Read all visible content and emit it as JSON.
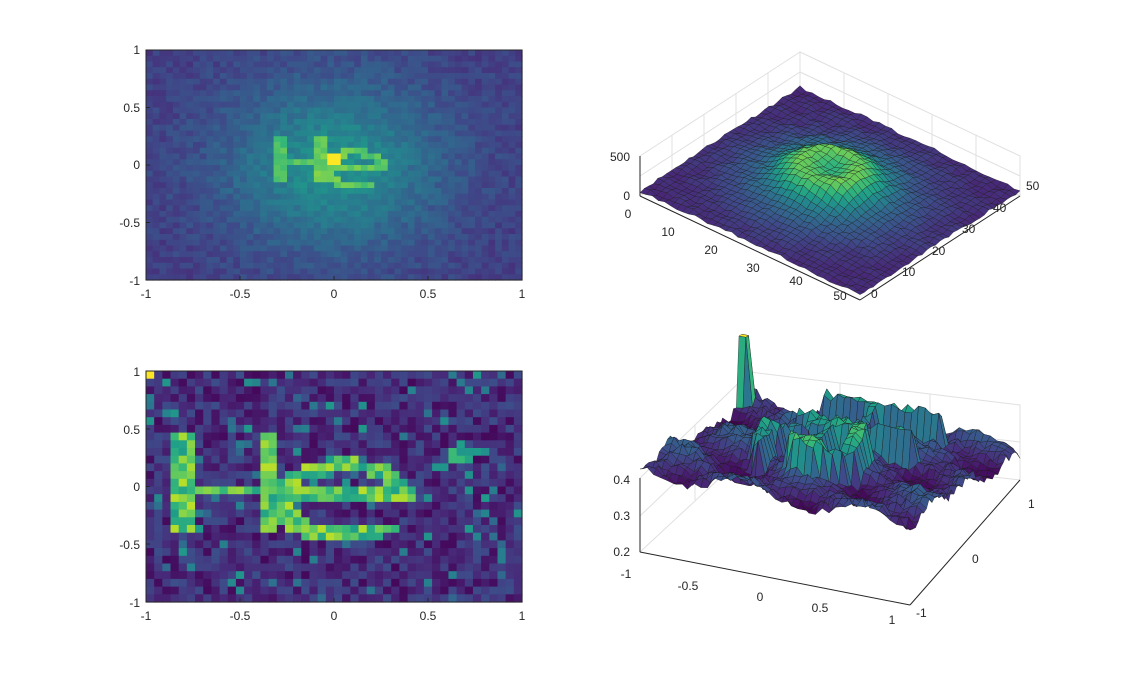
{
  "chart_data": [
    {
      "type": "heatmap",
      "position": "top-left",
      "title": "",
      "xlabel": "",
      "ylabel": "",
      "xlim": [
        -1,
        1
      ],
      "ylim": [
        -1,
        1
      ],
      "xticks": [
        "-1",
        "-0.5",
        "0",
        "0.5",
        "1"
      ],
      "yticks": [
        "-1",
        "-0.5",
        "0",
        "0.5",
        "1"
      ],
      "grid": false,
      "colormap": "viridis",
      "description_of_values": "2D histogram, ~50x50 bins; broad elliptical blob with faint 'He' letters brighter near center"
    },
    {
      "type": "surface",
      "position": "top-right",
      "title": "",
      "xlim": [
        0,
        50
      ],
      "ylim": [
        0,
        50
      ],
      "zlim": [
        0,
        500
      ],
      "xticks": [
        "10",
        "20",
        "30",
        "40",
        "50"
      ],
      "yticks": [
        "0",
        "10",
        "20",
        "30",
        "40",
        "50"
      ],
      "zticks": [
        "0",
        "500"
      ],
      "xtick_extra": "0",
      "grid": true,
      "colormap": "viridis"
    },
    {
      "type": "heatmap",
      "position": "bottom-left",
      "title": "",
      "xlabel": "",
      "ylabel": "",
      "xlim": [
        -1,
        1
      ],
      "ylim": [
        -1,
        1
      ],
      "xticks": [
        "-1",
        "-0.5",
        "0",
        "0.5",
        "1"
      ],
      "yticks": [
        "-1",
        "-0.5",
        "0",
        "0.5",
        "1"
      ],
      "grid": false,
      "colormap": "viridis",
      "description_of_values": "reconstructed density clearly showing the letters 'He' plus noise"
    },
    {
      "type": "surface",
      "position": "bottom-right",
      "title": "",
      "xlim": [
        -1,
        1
      ],
      "ylim": [
        -1,
        1
      ],
      "zlim": [
        0.2,
        0.4
      ],
      "xticks": [
        "-0.5",
        "0",
        "0.5",
        "1"
      ],
      "xtick_extra": "-1",
      "yticks": [
        "-1",
        "0",
        "1"
      ],
      "zticks": [
        "0.2",
        "0.3",
        "0.4"
      ],
      "grid": true,
      "colormap": "viridis"
    }
  ],
  "colors": {
    "viridis": [
      "#440154",
      "#482878",
      "#3e4a89",
      "#31688e",
      "#26828e",
      "#1f9e89",
      "#35b779",
      "#6ece58",
      "#b5de2b",
      "#fde725"
    ],
    "axis": "#262626",
    "grid": "#e6e6e6"
  }
}
